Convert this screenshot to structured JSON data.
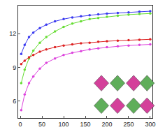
{
  "chart_data": {
    "type": "line",
    "x": [
      2,
      10,
      20,
      30,
      45,
      60,
      80,
      100,
      120,
      140,
      160,
      180,
      200,
      225,
      250,
      275,
      300
    ],
    "series": [
      {
        "color": "#3a3af0",
        "marker": "circle",
        "values": [
          10.2,
          11.0,
          11.7,
          12.1,
          12.5,
          12.8,
          13.1,
          13.3,
          13.45,
          13.55,
          13.65,
          13.72,
          13.78,
          13.85,
          13.9,
          13.95,
          14.0
        ]
      },
      {
        "color": "#66dd33",
        "marker": "circle",
        "values": [
          7.6,
          8.8,
          9.8,
          10.5,
          11.2,
          11.7,
          12.2,
          12.6,
          12.9,
          13.1,
          13.3,
          13.4,
          13.5,
          13.6,
          13.7,
          13.75,
          13.8
        ]
      },
      {
        "color": "#dd2222",
        "marker": "circle",
        "values": [
          9.3,
          9.6,
          9.9,
          10.1,
          10.4,
          10.6,
          10.8,
          10.95,
          11.05,
          11.15,
          11.2,
          11.28,
          11.33,
          11.38,
          11.42,
          11.46,
          11.5
        ]
      },
      {
        "color": "#dd44dd",
        "marker": "circle",
        "values": [
          5.2,
          6.6,
          7.6,
          8.2,
          8.9,
          9.4,
          9.8,
          10.1,
          10.3,
          10.45,
          10.6,
          10.7,
          10.8,
          10.88,
          10.95,
          11.0,
          11.05
        ]
      }
    ],
    "xlim": [
      -5,
      305
    ],
    "xticks": [
      0,
      50,
      100,
      150,
      200,
      250,
      300
    ],
    "ylim": [
      4.5,
      14.5
    ],
    "yticks": [
      6,
      9,
      12
    ],
    "grid": false
  }
}
